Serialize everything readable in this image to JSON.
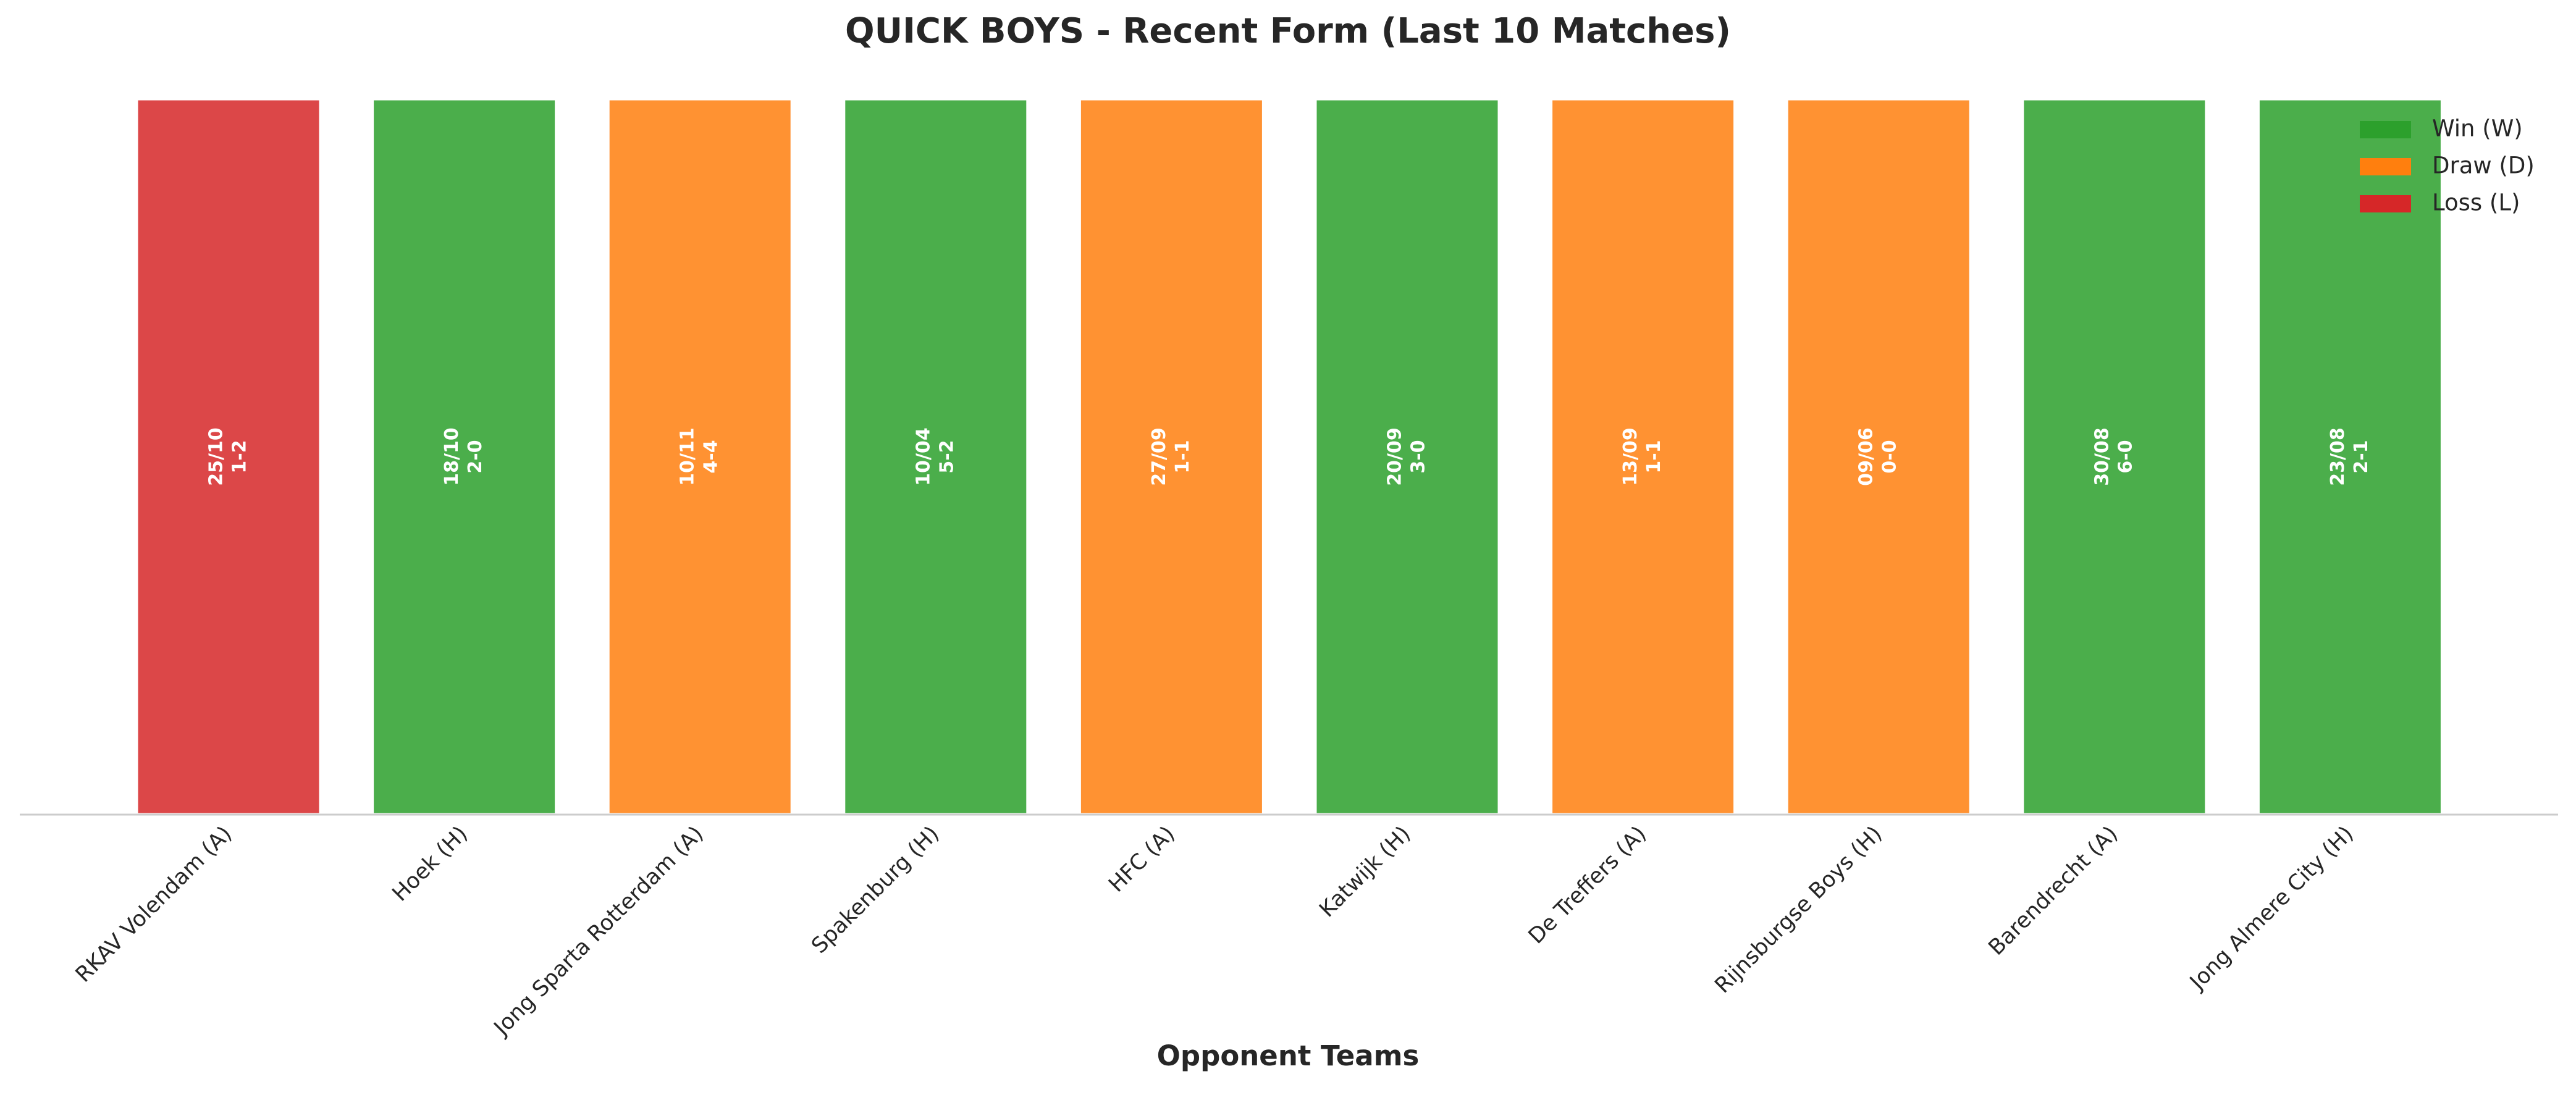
{
  "chart_data": {
    "type": "bar",
    "title": "QUICK BOYS - Recent Form (Last 10 Matches)",
    "xlabel": "Opponent Teams",
    "categories": [
      "RKAV Volendam (A)",
      "Hoek (H)",
      "Jong Sparta Rotterdam (A)",
      "Spakenburg (H)",
      "HFC (A)",
      "Katwijk (H)",
      "De Treffers (A)",
      "Rijnsburgse Boys (H)",
      "Barendrecht (A)",
      "Jong Almere City (H)"
    ],
    "values": [
      1,
      1,
      1,
      1,
      1,
      1,
      1,
      1,
      1,
      1
    ],
    "dates": [
      "25/10",
      "18/10",
      "10/11",
      "10/04",
      "27/09",
      "20/09",
      "13/09",
      "09/06",
      "30/08",
      "23/08"
    ],
    "scores": [
      "1-2",
      "2-0",
      "4-4",
      "5-2",
      "1-1",
      "3-0",
      "1-1",
      "0-0",
      "6-0",
      "2-1"
    ],
    "results": [
      "L",
      "W",
      "D",
      "W",
      "D",
      "W",
      "D",
      "D",
      "W",
      "W"
    ],
    "ylim": [
      0,
      1
    ],
    "legend": [
      {
        "key": "W",
        "name": "Win (W)",
        "color": "#2ca02c"
      },
      {
        "key": "D",
        "name": "Draw (D)",
        "color": "#ff7f0e"
      },
      {
        "key": "L",
        "name": "Loss (L)",
        "color": "#d62728"
      }
    ],
    "legend_loc": "upper right"
  }
}
